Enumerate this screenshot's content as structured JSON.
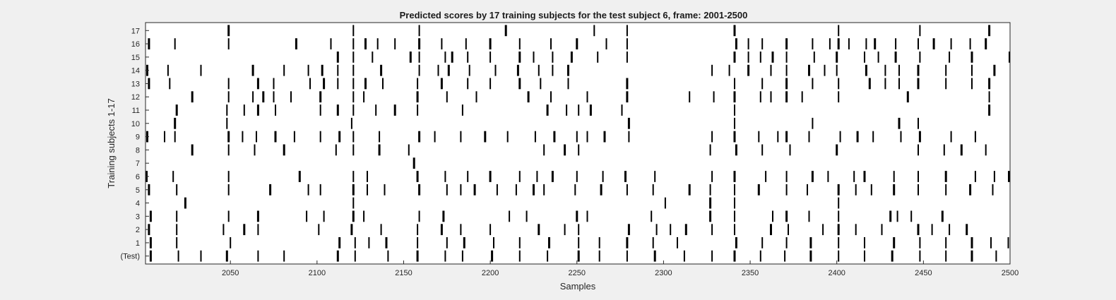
{
  "chart_data": {
    "type": "raster",
    "title": "Predicted scores by 17 training subjects for the test subject 6, frame: 2001-2500",
    "xlabel": "Samples",
    "ylabel": "Training subjects 1-17",
    "xlim": [
      2001,
      2500
    ],
    "xticks": [
      2050,
      2100,
      2150,
      2200,
      2250,
      2300,
      2350,
      2400,
      2450,
      2500
    ],
    "row_labels": [
      "(Test)",
      "1",
      "2",
      "3",
      "4",
      "5",
      "6",
      "7",
      "8",
      "9",
      "10",
      "11",
      "12",
      "13",
      "14",
      "15",
      "16",
      "17"
    ],
    "grid": false,
    "rows": [
      {
        "label": "(Test)",
        "events": [
          2004,
          2020,
          2033,
          2048,
          2066,
          2081,
          2112,
          2122,
          2141,
          2158,
          2174,
          2184,
          2201,
          2217,
          2233,
          2251,
          2263,
          2279,
          2295,
          2312,
          2328,
          2341,
          2356,
          2370,
          2385,
          2401,
          2416,
          2432,
          2448,
          2463,
          2478,
          2492
        ]
      },
      {
        "label": "1",
        "events": [
          2004,
          2019,
          2050,
          2113,
          2122,
          2130,
          2140,
          2158,
          2175,
          2185,
          2202,
          2217,
          2234,
          2251,
          2263,
          2279,
          2294,
          2308,
          2342,
          2357,
          2371,
          2385,
          2401,
          2416,
          2433,
          2448,
          2463,
          2478,
          2489,
          2499
        ]
      },
      {
        "label": "2",
        "events": [
          2003,
          2019,
          2046,
          2058,
          2066,
          2101,
          2120,
          2137,
          2158,
          2172,
          2183,
          2200,
          2228,
          2243,
          2251,
          2280,
          2296,
          2304,
          2313,
          2328,
          2341,
          2362,
          2372,
          2392,
          2401,
          2411,
          2426,
          2447,
          2455,
          2465,
          2475
        ]
      },
      {
        "label": "3",
        "events": [
          2004,
          2019,
          2049,
          2066,
          2094,
          2104,
          2121,
          2127,
          2159,
          2173,
          2211,
          2221,
          2250,
          2256,
          2293,
          2327,
          2341,
          2363,
          2371,
          2384,
          2401,
          2431,
          2435,
          2443,
          2461
        ]
      },
      {
        "label": "4",
        "events": [
          2024,
          2121,
          2301,
          2327,
          2341,
          2401
        ]
      },
      {
        "label": "5",
        "events": [
          2003,
          2019,
          2049,
          2073,
          2095,
          2102,
          2121,
          2129,
          2139,
          2159,
          2175,
          2183,
          2191,
          2204,
          2215,
          2225,
          2231,
          2249,
          2264,
          2279,
          2294,
          2315,
          2327,
          2341,
          2355,
          2371,
          2383,
          2401,
          2411,
          2420,
          2433,
          2447,
          2463,
          2477,
          2490
        ]
      },
      {
        "label": "6",
        "events": [
          2001,
          2017,
          2049,
          2090,
          2121,
          2129,
          2158,
          2174,
          2187,
          2200,
          2217,
          2227,
          2236,
          2250,
          2265,
          2278,
          2295,
          2328,
          2341,
          2359,
          2371,
          2386,
          2395,
          2410,
          2416,
          2433,
          2447,
          2463,
          2480,
          2491,
          2500
        ]
      },
      {
        "label": "7",
        "events": [
          2156
        ]
      },
      {
        "label": "8",
        "events": [
          2028,
          2049,
          2064,
          2081,
          2111,
          2121,
          2136,
          2153,
          2231,
          2243,
          2251,
          2327,
          2342,
          2357,
          2373,
          2400,
          2447,
          2462,
          2472,
          2486
        ]
      },
      {
        "label": "9",
        "events": [
          2002,
          2012,
          2018,
          2049,
          2057,
          2065,
          2076,
          2087,
          2102,
          2113,
          2121,
          2136,
          2159,
          2168,
          2183,
          2197,
          2210,
          2226,
          2237,
          2250,
          2256,
          2266,
          2280,
          2328,
          2341,
          2355,
          2366,
          2371,
          2384,
          2402,
          2412,
          2421,
          2437,
          2448,
          2466,
          2480
        ]
      },
      {
        "label": "10",
        "events": [
          2018,
          2048,
          2120,
          2280,
          2341,
          2386,
          2436,
          2447
        ]
      },
      {
        "label": "11",
        "events": [
          2019,
          2048,
          2058,
          2066,
          2076,
          2102,
          2112,
          2121,
          2134,
          2145,
          2158,
          2184,
          2233,
          2244,
          2251,
          2258,
          2276,
          2341,
          2488
        ]
      },
      {
        "label": "12",
        "events": [
          2028,
          2049,
          2063,
          2069,
          2075,
          2085,
          2102,
          2121,
          2127,
          2158,
          2175,
          2192,
          2222,
          2235,
          2256,
          2279,
          2315,
          2329,
          2341,
          2356,
          2362,
          2371,
          2380,
          2401,
          2441,
          2488
        ]
      },
      {
        "label": "13",
        "events": [
          2003,
          2015,
          2049,
          2066,
          2075,
          2096,
          2104,
          2112,
          2121,
          2128,
          2138,
          2158,
          2172,
          2187,
          2200,
          2217,
          2229,
          2245,
          2279,
          2341,
          2357,
          2371,
          2386,
          2401,
          2419,
          2428,
          2436,
          2447,
          2463,
          2478,
          2488
        ]
      },
      {
        "label": "14",
        "events": [
          2002,
          2014,
          2033,
          2063,
          2081,
          2095,
          2103,
          2112,
          2121,
          2137,
          2159,
          2170,
          2176,
          2188,
          2203,
          2216,
          2228,
          2236,
          2245,
          2328,
          2338,
          2349,
          2362,
          2371,
          2384,
          2393,
          2400,
          2417,
          2428,
          2436,
          2447,
          2463,
          2478,
          2491
        ]
      },
      {
        "label": "15",
        "events": [
          2112,
          2121,
          2132,
          2154,
          2159,
          2174,
          2178,
          2187,
          2200,
          2217,
          2225,
          2236,
          2247,
          2262,
          2279,
          2341,
          2349,
          2356,
          2363,
          2371,
          2387,
          2400,
          2416,
          2424,
          2434,
          2448,
          2465,
          2478,
          2500
        ]
      },
      {
        "label": "16",
        "events": [
          2003,
          2018,
          2049,
          2088,
          2108,
          2121,
          2128,
          2135,
          2145,
          2159,
          2172,
          2186,
          2200,
          2217,
          2235,
          2250,
          2267,
          2279,
          2342,
          2349,
          2357,
          2371,
          2386,
          2396,
          2401,
          2407,
          2417,
          2422,
          2434,
          2447,
          2456,
          2466,
          2477,
          2486
        ]
      },
      {
        "label": "17",
        "events": [
          2049,
          2121,
          2159,
          2209,
          2260,
          2279,
          2341,
          2401,
          2448,
          2488
        ]
      }
    ]
  }
}
